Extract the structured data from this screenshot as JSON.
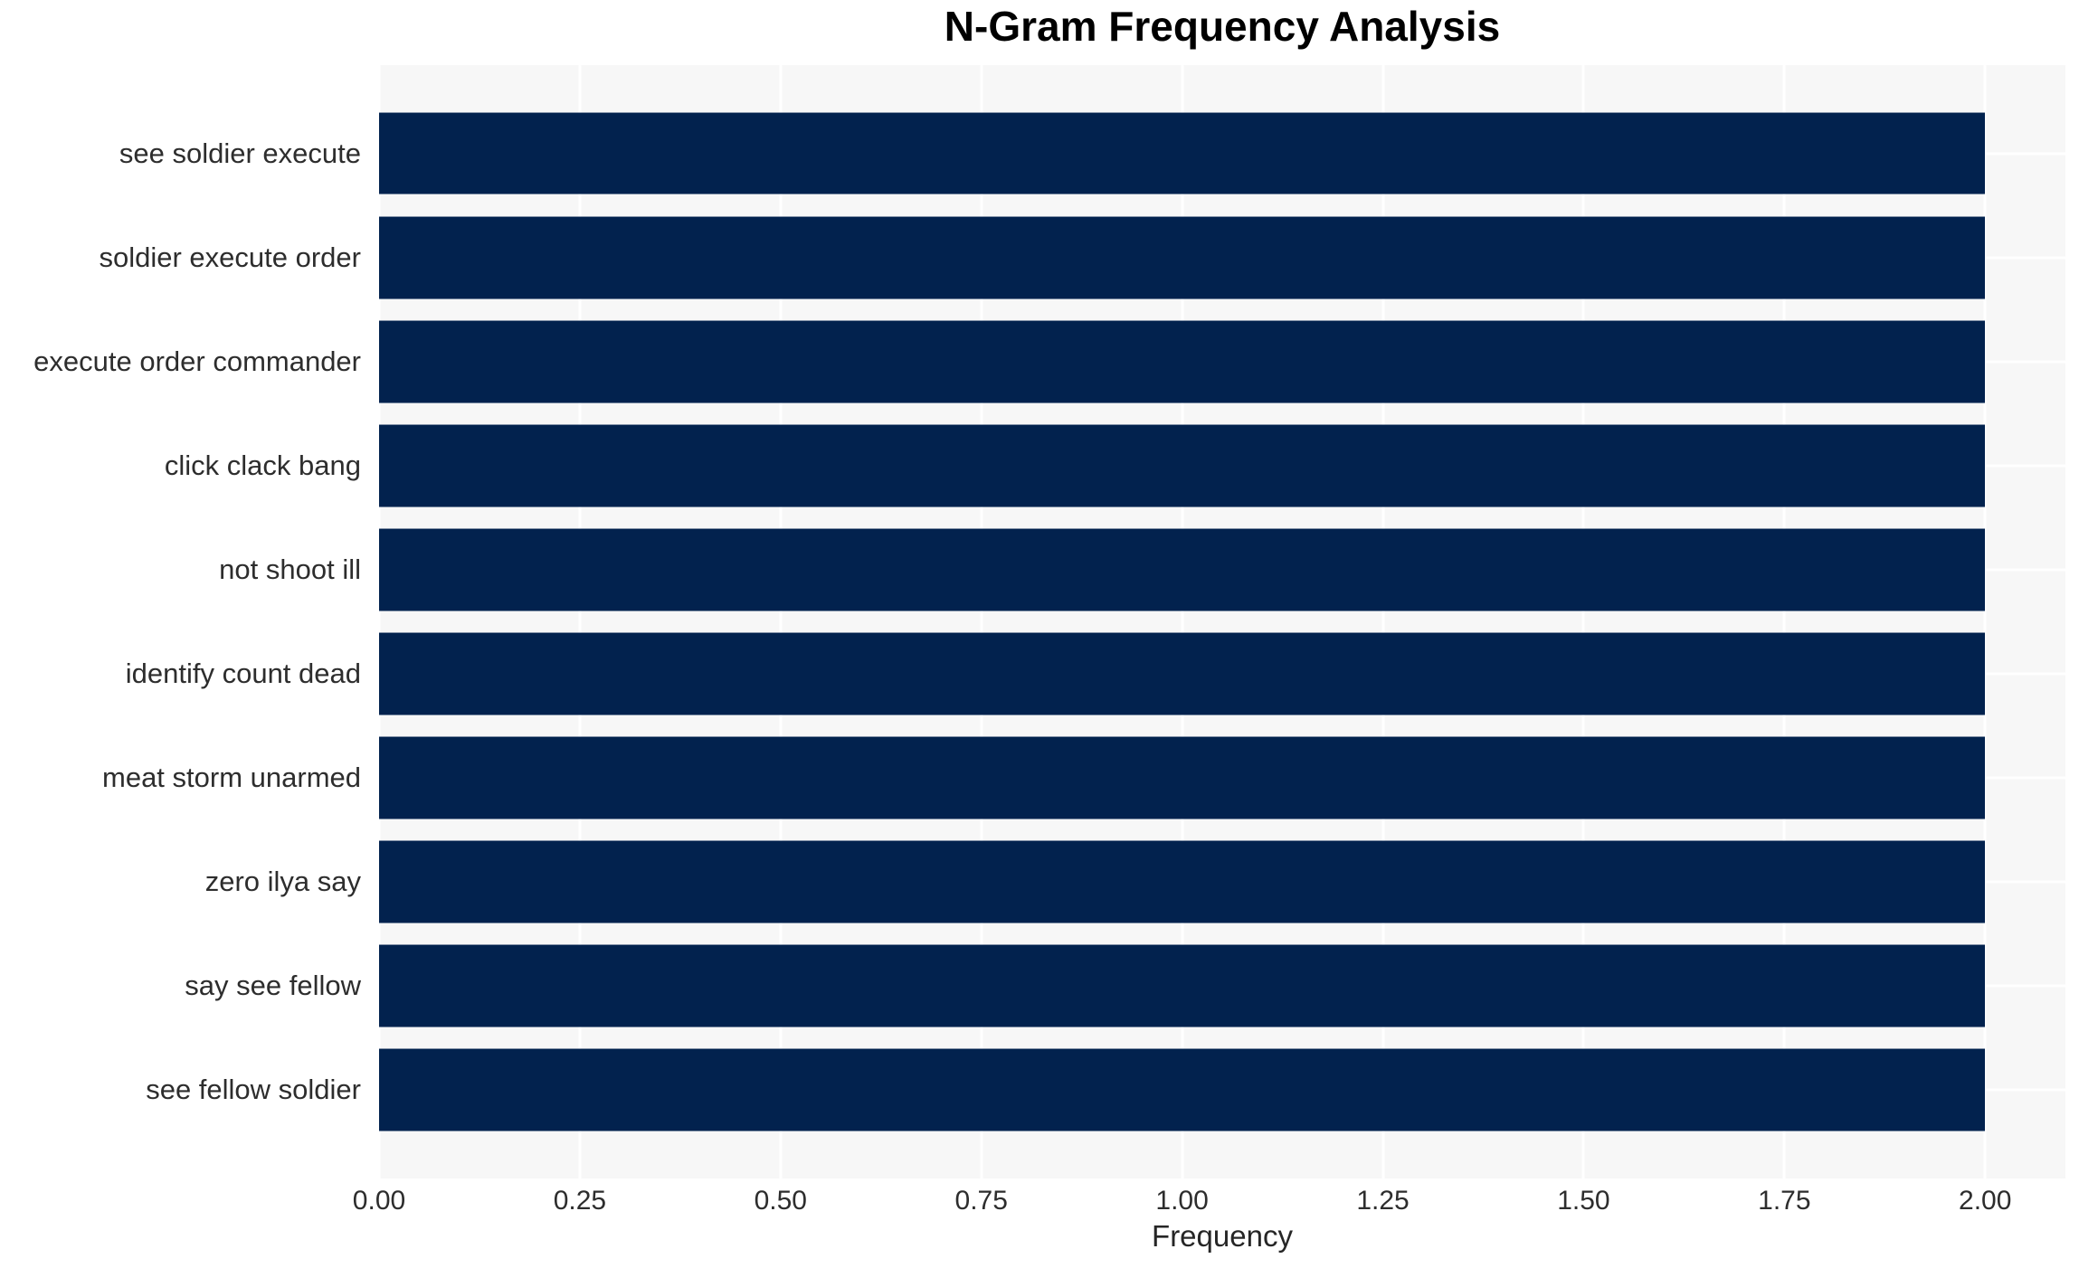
{
  "chart_data": {
    "type": "bar",
    "orientation": "horizontal",
    "title": "N-Gram Frequency Analysis",
    "xlabel": "Frequency",
    "ylabel": "",
    "categories": [
      "see soldier execute",
      "soldier execute order",
      "execute order commander",
      "click clack bang",
      "not shoot ill",
      "identify count dead",
      "meat storm unarmed",
      "zero ilya say",
      "say see fellow",
      "see fellow soldier"
    ],
    "values": [
      2,
      2,
      2,
      2,
      2,
      2,
      2,
      2,
      2,
      2
    ],
    "xlim": [
      0,
      2.1
    ],
    "xticks": {
      "values": [
        0,
        0.25,
        0.5,
        0.75,
        1.0,
        1.25,
        1.5,
        1.75,
        2.0
      ],
      "labels": [
        "0.00",
        "0.25",
        "0.50",
        "0.75",
        "1.00",
        "1.25",
        "1.50",
        "1.75",
        "2.00"
      ]
    },
    "grid": true,
    "legend_position": "none",
    "colors": {
      "bar": "#02224E",
      "plot_bg": "#F7F7F7",
      "grid": "#FFFFFF",
      "text": "#2D2D2D",
      "title": "#000000",
      "figure_bg": "#FFFFFF"
    }
  }
}
